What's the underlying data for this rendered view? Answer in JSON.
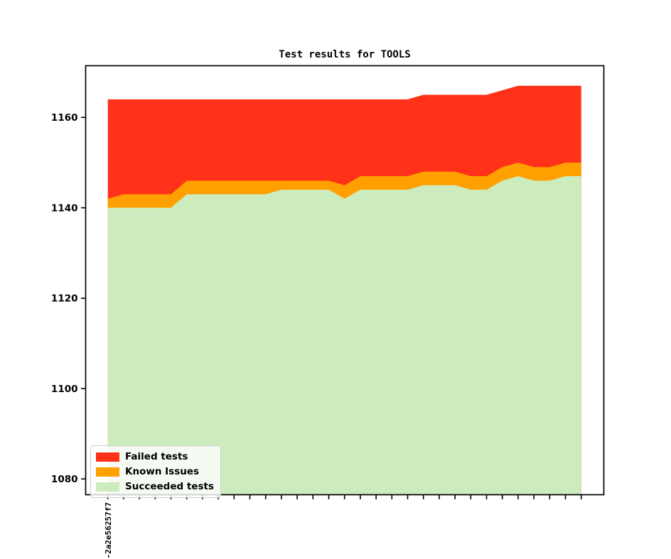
{
  "figure": {
    "title": "Test results for TOOLS"
  },
  "chart_data": {
    "type": "area",
    "stacked": true,
    "title": "Test results for TOOLS",
    "grid": false,
    "legend_position": "lower left",
    "x": {
      "count": 31,
      "first_tick_label": "-2a2e56257f7",
      "note_other_ticks": ""
    },
    "yticks": [
      "1080",
      "1100",
      "1120",
      "1140",
      "1160"
    ],
    "ytick_values": [
      1080,
      1100,
      1120,
      1140,
      1160
    ],
    "ylim": [
      1076.6,
      1171.6
    ],
    "series": [
      {
        "name": "Failed tests",
        "color": "#ff3118",
        "values": [
          22,
          21,
          21,
          21,
          21,
          18,
          18,
          18,
          18,
          18,
          18,
          18,
          18,
          18,
          18,
          19,
          17,
          17,
          17,
          17,
          17,
          17,
          17,
          18,
          18,
          17,
          17,
          18,
          18,
          17,
          17
        ]
      },
      {
        "name": "Known Issues",
        "color": "#ffa000",
        "values": [
          2,
          3,
          3,
          3,
          3,
          3,
          3,
          3,
          3,
          3,
          3,
          2,
          2,
          2,
          2,
          3,
          3,
          3,
          3,
          3,
          3,
          3,
          3,
          3,
          3,
          3,
          3,
          3,
          3,
          3,
          3
        ]
      },
      {
        "name": "Succeeded tests",
        "color": "#cdecbd",
        "values": [
          1140,
          1140,
          1140,
          1140,
          1140,
          1143,
          1143,
          1143,
          1143,
          1143,
          1143,
          1144,
          1144,
          1144,
          1144,
          1142,
          1144,
          1144,
          1144,
          1144,
          1145,
          1145,
          1145,
          1144,
          1144,
          1146,
          1147,
          1146,
          1146,
          1147,
          1147
        ]
      }
    ],
    "totals_visible_top": [
      1164,
      1164,
      1164,
      1164,
      1164,
      1164,
      1164,
      1164,
      1164,
      1164,
      1164,
      1164,
      1164,
      1164,
      1164,
      1164,
      1164,
      1164,
      1164,
      1164,
      1165,
      1165,
      1165,
      1165,
      1165,
      1166,
      1167,
      1167,
      1167,
      1167,
      1167
    ]
  }
}
